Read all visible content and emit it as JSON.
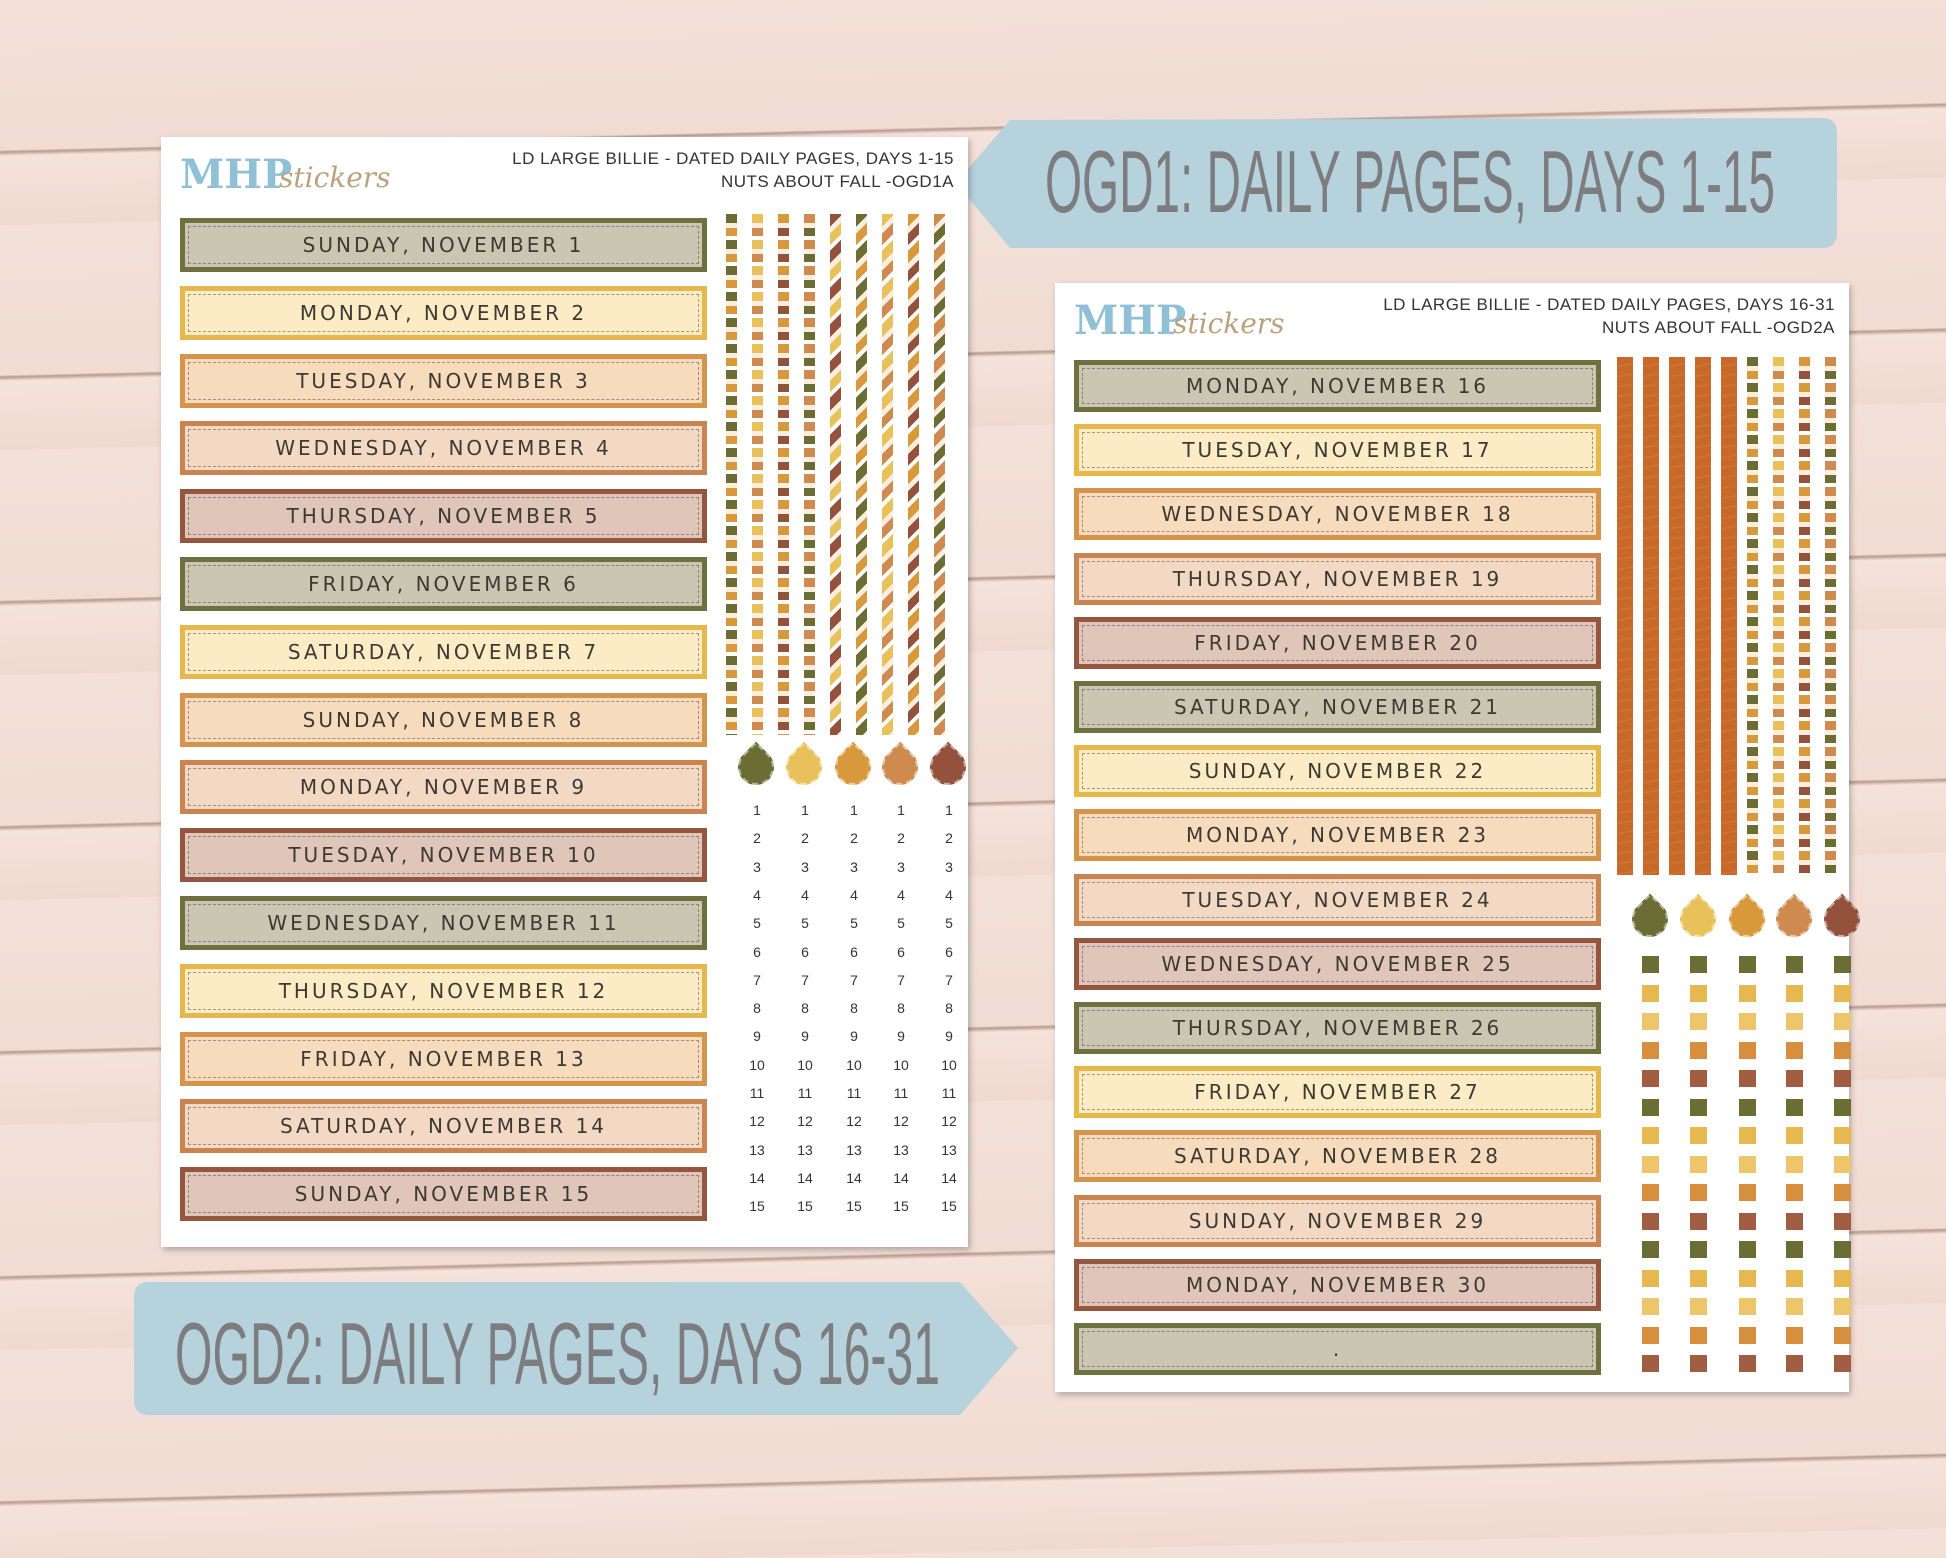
{
  "banners": [
    {
      "text": "OGD1: DAILY PAGES, DAYS 1-15"
    },
    {
      "text": "OGD2: DAILY PAGES, DAYS 16-31"
    }
  ],
  "sheets": [
    {
      "brand": "MHP",
      "brand_script": "stickers",
      "header": [
        "LD LARGE BILLIE  -  DATED DAILY PAGES, DAYS 1-15",
        "NUTS ABOUT FALL -OGD1A"
      ],
      "labels": [
        "SUNDAY, NOVEMBER 1",
        "MONDAY, NOVEMBER 2",
        "TUESDAY, NOVEMBER 3",
        "WEDNESDAY, NOVEMBER 4",
        "THURSDAY, NOVEMBER 5",
        "FRIDAY, NOVEMBER 6",
        "SATURDAY, NOVEMBER 7",
        "SUNDAY, NOVEMBER 8",
        "MONDAY, NOVEMBER 9",
        "TUESDAY, NOVEMBER 10",
        "WEDNESDAY, NOVEMBER 11",
        "THURSDAY, NOVEMBER 12",
        "FRIDAY, NOVEMBER 13",
        "SATURDAY, NOVEMBER 14",
        "SUNDAY, NOVEMBER 15"
      ],
      "numbers": [
        [
          1,
          2,
          3,
          4,
          5,
          6,
          7,
          8,
          9,
          10,
          11,
          12,
          13,
          14,
          15
        ],
        [
          1,
          2,
          3,
          4,
          5,
          6,
          7,
          8,
          9,
          10,
          11,
          12,
          13,
          14,
          15
        ],
        [
          1,
          2,
          3,
          4,
          5,
          6,
          7,
          8,
          9,
          10,
          11,
          12,
          13,
          14,
          15
        ],
        [
          1,
          2,
          3,
          4,
          5,
          6,
          7,
          8,
          9,
          10,
          11,
          12,
          13,
          14,
          15
        ],
        [
          1,
          2,
          3,
          4,
          5,
          6,
          7,
          8,
          9,
          10,
          11,
          12,
          13,
          14,
          15
        ]
      ]
    },
    {
      "brand": "MHP",
      "brand_script": "stickers",
      "header": [
        "LD LARGE BILLIE - DATED DAILY PAGES, DAYS 16-31",
        "NUTS ABOUT FALL -OGD2A"
      ],
      "labels": [
        "MONDAY, NOVEMBER 16",
        "TUESDAY, NOVEMBER 17",
        "WEDNESDAY, NOVEMBER 18",
        "THURSDAY, NOVEMBER 19",
        "FRIDAY, NOVEMBER 20",
        "SATURDAY, NOVEMBER 21",
        "SUNDAY, NOVEMBER 22",
        "MONDAY, NOVEMBER 23",
        "TUESDAY, NOVEMBER 24",
        "WEDNESDAY, NOVEMBER 25",
        "THURSDAY, NOVEMBER 26",
        "FRIDAY, NOVEMBER 27",
        "SATURDAY, NOVEMBER 28",
        "SUNDAY, NOVEMBER 29",
        "MONDAY, NOVEMBER 30",
        "."
      ]
    }
  ]
}
